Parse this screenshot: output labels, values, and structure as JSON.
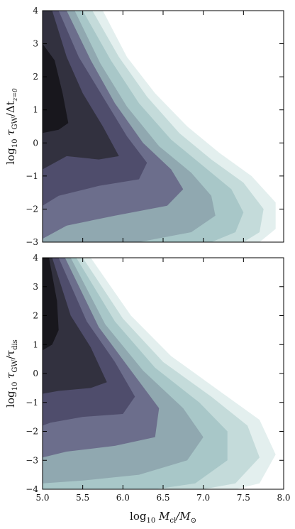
{
  "chart_data": [
    {
      "type": "contour",
      "panel": "top",
      "ylabel": {
        "base": "log",
        "sub": "10",
        "main": " τ",
        "mainsub": "GW",
        "rest": "/Δt",
        "restsub": "z=0"
      },
      "xlim": [
        5.0,
        8.0
      ],
      "ylim": [
        -3,
        4
      ],
      "yticks": [
        4,
        3,
        2,
        1,
        0,
        -1,
        -2,
        -3
      ],
      "ytick_labels": [
        "4",
        "3",
        "2",
        "1",
        "0",
        "−1",
        "−2",
        "−3"
      ],
      "grid": false,
      "levels": [
        {
          "level": 1,
          "color": "#e3efee",
          "boundary": [
            [
              5.0,
              -3.0
            ],
            [
              5.0,
              4.0
            ],
            [
              5.75,
              4.0
            ],
            [
              6.05,
              2.6
            ],
            [
              6.4,
              1.5
            ],
            [
              6.8,
              0.5
            ],
            [
              7.2,
              -0.3
            ],
            [
              7.6,
              -1.0
            ],
            [
              7.9,
              -1.8
            ],
            [
              7.9,
              -2.6
            ],
            [
              7.7,
              -3.0
            ]
          ]
        },
        {
          "level": 2,
          "color": "#c4dbda",
          "boundary": [
            [
              5.0,
              -3.0
            ],
            [
              5.0,
              4.0
            ],
            [
              5.62,
              4.0
            ],
            [
              5.95,
              2.6
            ],
            [
              6.3,
              1.4
            ],
            [
              6.7,
              0.3
            ],
            [
              7.1,
              -0.5
            ],
            [
              7.5,
              -1.2
            ],
            [
              7.75,
              -2.0
            ],
            [
              7.7,
              -2.7
            ],
            [
              7.5,
              -3.0
            ]
          ]
        },
        {
          "level": 3,
          "color": "#a8c7c8",
          "boundary": [
            [
              5.0,
              -3.0
            ],
            [
              5.0,
              4.0
            ],
            [
              5.5,
              4.0
            ],
            [
              5.85,
              2.5
            ],
            [
              6.2,
              1.2
            ],
            [
              6.6,
              0.1
            ],
            [
              7.0,
              -0.7
            ],
            [
              7.35,
              -1.4
            ],
            [
              7.5,
              -2.1
            ],
            [
              7.4,
              -2.7
            ],
            [
              7.1,
              -3.0
            ]
          ]
        },
        {
          "level": 4,
          "color": "#90a8b0",
          "boundary": [
            [
              5.0,
              -3.0
            ],
            [
              5.0,
              4.0
            ],
            [
              5.4,
              4.0
            ],
            [
              5.72,
              2.4
            ],
            [
              6.05,
              1.1
            ],
            [
              6.45,
              -0.1
            ],
            [
              6.85,
              -0.9
            ],
            [
              7.1,
              -1.6
            ],
            [
              7.15,
              -2.2
            ],
            [
              6.85,
              -2.7
            ],
            [
              6.2,
              -3.0
            ]
          ]
        },
        {
          "level": 5,
          "color": "#6c6e8c",
          "boundary": [
            [
              5.0,
              -2.9
            ],
            [
              5.0,
              4.0
            ],
            [
              5.3,
              4.0
            ],
            [
              5.6,
              2.5
            ],
            [
              5.9,
              1.2
            ],
            [
              6.25,
              0.0
            ],
            [
              6.6,
              -0.8
            ],
            [
              6.75,
              -1.4
            ],
            [
              6.55,
              -1.9
            ],
            [
              5.9,
              -2.2
            ],
            [
              5.3,
              -2.5
            ]
          ]
        },
        {
          "level": 6,
          "color": "#4f4d6c",
          "boundary": [
            [
              5.0,
              -1.9
            ],
            [
              5.0,
              4.0
            ],
            [
              5.2,
              4.0
            ],
            [
              5.45,
              2.6
            ],
            [
              5.75,
              1.4
            ],
            [
              6.05,
              0.2
            ],
            [
              6.3,
              -0.6
            ],
            [
              6.2,
              -1.1
            ],
            [
              5.7,
              -1.3
            ],
            [
              5.2,
              -1.6
            ]
          ]
        },
        {
          "level": 7,
          "color": "#32313f",
          "boundary": [
            [
              5.0,
              -0.8
            ],
            [
              5.0,
              4.0
            ],
            [
              5.12,
              4.0
            ],
            [
              5.3,
              2.6
            ],
            [
              5.5,
              1.5
            ],
            [
              5.75,
              0.5
            ],
            [
              5.95,
              -0.4
            ],
            [
              5.7,
              -0.5
            ],
            [
              5.3,
              -0.4
            ]
          ]
        },
        {
          "level": 8,
          "color": "#18171d",
          "boundary": [
            [
              5.0,
              0.3
            ],
            [
              5.0,
              3.0
            ],
            [
              5.15,
              2.5
            ],
            [
              5.25,
              1.5
            ],
            [
              5.32,
              0.6
            ],
            [
              5.2,
              0.4
            ]
          ]
        }
      ]
    },
    {
      "type": "contour",
      "panel": "bottom",
      "xlabel": {
        "base": "log",
        "sub": "10",
        "main": " M",
        "mainsub": "cl",
        "rest": "/M",
        "restsub": "⊙"
      },
      "ylabel": {
        "base": "log",
        "sub": "10",
        "main": " τ",
        "mainsub": "GW",
        "rest": "/τ",
        "restsub": "dis"
      },
      "xlim": [
        5.0,
        8.0
      ],
      "ylim": [
        -4,
        4
      ],
      "xticks": [
        5.0,
        5.5,
        6.0,
        6.5,
        7.0,
        7.5,
        8.0
      ],
      "xtick_labels": [
        "5.0",
        "5.5",
        "6.0",
        "6.5",
        "7.0",
        "7.5",
        "8.0"
      ],
      "yticks": [
        4,
        3,
        2,
        1,
        0,
        -1,
        -2,
        -3,
        -4
      ],
      "ytick_labels": [
        "4",
        "3",
        "2",
        "1",
        "0",
        "−1",
        "−2",
        "−3",
        "−4"
      ],
      "grid": false,
      "levels": [
        {
          "level": 1,
          "color": "#e3efee",
          "boundary": [
            [
              5.0,
              -4.0
            ],
            [
              5.0,
              4.0
            ],
            [
              5.6,
              4.0
            ],
            [
              6.1,
              2.0
            ],
            [
              6.6,
              0.6
            ],
            [
              7.2,
              -0.6
            ],
            [
              7.7,
              -1.6
            ],
            [
              7.9,
              -2.8
            ],
            [
              7.7,
              -3.8
            ],
            [
              7.4,
              -4.0
            ]
          ]
        },
        {
          "level": 2,
          "color": "#c4dbda",
          "boundary": [
            [
              5.0,
              -4.0
            ],
            [
              5.0,
              4.0
            ],
            [
              5.5,
              4.0
            ],
            [
              6.0,
              1.9
            ],
            [
              6.5,
              0.4
            ],
            [
              7.1,
              -0.8
            ],
            [
              7.55,
              -1.8
            ],
            [
              7.7,
              -2.9
            ],
            [
              7.4,
              -3.8
            ],
            [
              7.0,
              -4.0
            ]
          ]
        },
        {
          "level": 3,
          "color": "#a8c7c8",
          "boundary": [
            [
              5.0,
              -4.0
            ],
            [
              5.0,
              4.0
            ],
            [
              5.42,
              4.0
            ],
            [
              5.9,
              1.8
            ],
            [
              6.4,
              0.2
            ],
            [
              6.95,
              -1.0
            ],
            [
              7.3,
              -2.0
            ],
            [
              7.3,
              -3.0
            ],
            [
              6.9,
              -3.8
            ],
            [
              6.4,
              -4.0
            ]
          ]
        },
        {
          "level": 4,
          "color": "#90a8b0",
          "boundary": [
            [
              5.0,
              -3.8
            ],
            [
              5.0,
              4.0
            ],
            [
              5.35,
              4.0
            ],
            [
              5.78,
              1.7
            ],
            [
              6.25,
              0.1
            ],
            [
              6.75,
              -1.2
            ],
            [
              7.0,
              -2.2
            ],
            [
              6.8,
              -3.0
            ],
            [
              6.2,
              -3.5
            ],
            [
              5.5,
              -3.7
            ]
          ]
        },
        {
          "level": 5,
          "color": "#6c6e8c",
          "boundary": [
            [
              5.0,
              -2.9
            ],
            [
              5.0,
              4.0
            ],
            [
              5.28,
              4.0
            ],
            [
              5.7,
              1.6
            ],
            [
              6.1,
              0.1
            ],
            [
              6.45,
              -1.2
            ],
            [
              6.4,
              -2.2
            ],
            [
              5.9,
              -2.5
            ],
            [
              5.3,
              -2.7
            ]
          ]
        },
        {
          "level": 6,
          "color": "#4f4d6c",
          "boundary": [
            [
              5.0,
              -1.8
            ],
            [
              5.0,
              4.0
            ],
            [
              5.2,
              4.0
            ],
            [
              5.55,
              1.8
            ],
            [
              5.9,
              0.4
            ],
            [
              6.15,
              -0.8
            ],
            [
              6.0,
              -1.4
            ],
            [
              5.5,
              -1.5
            ],
            [
              5.1,
              -1.7
            ]
          ]
        },
        {
          "level": 7,
          "color": "#32313f",
          "boundary": [
            [
              5.0,
              -0.7
            ],
            [
              5.0,
              4.0
            ],
            [
              5.12,
              4.0
            ],
            [
              5.35,
              2.0
            ],
            [
              5.6,
              0.9
            ],
            [
              5.8,
              -0.3
            ],
            [
              5.6,
              -0.5
            ],
            [
              5.2,
              -0.6
            ]
          ]
        },
        {
          "level": 8,
          "color": "#18171d",
          "boundary": [
            [
              5.0,
              0.8
            ],
            [
              5.0,
              4.0
            ],
            [
              5.08,
              4.0
            ],
            [
              5.18,
              2.5
            ],
            [
              5.2,
              1.5
            ],
            [
              5.12,
              1.0
            ]
          ]
        }
      ]
    }
  ]
}
